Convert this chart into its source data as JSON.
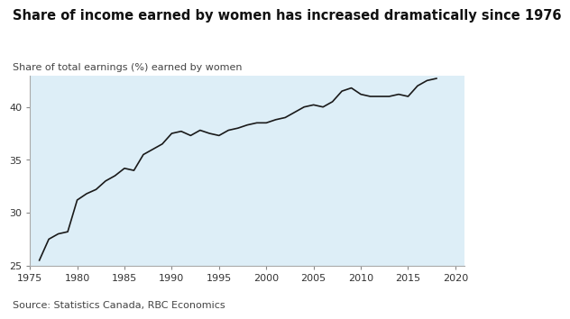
{
  "title": "Share of income earned by women has increased dramatically since 1976",
  "ylabel": "Share of total earnings (%) earned by women",
  "source": "Source: Statistics Canada, RBC Economics",
  "background_color": "#ddeef7",
  "outer_background": "#ffffff",
  "line_color": "#1a1a1a",
  "title_fontsize": 10.5,
  "label_fontsize": 8.0,
  "source_fontsize": 8.0,
  "years": [
    1976,
    1977,
    1978,
    1979,
    1980,
    1981,
    1982,
    1983,
    1984,
    1985,
    1986,
    1987,
    1988,
    1989,
    1990,
    1991,
    1992,
    1993,
    1994,
    1995,
    1996,
    1997,
    1998,
    1999,
    2000,
    2001,
    2002,
    2003,
    2004,
    2005,
    2006,
    2007,
    2008,
    2009,
    2010,
    2011,
    2012,
    2013,
    2014,
    2015,
    2016,
    2017,
    2018
  ],
  "values": [
    25.5,
    27.5,
    28.0,
    28.2,
    31.2,
    31.8,
    32.2,
    33.0,
    33.5,
    34.2,
    34.0,
    35.5,
    36.0,
    36.5,
    37.5,
    37.7,
    37.3,
    37.8,
    37.5,
    37.3,
    37.8,
    38.0,
    38.3,
    38.5,
    38.5,
    38.8,
    39.0,
    39.5,
    40.0,
    40.2,
    40.0,
    40.5,
    41.5,
    41.8,
    41.2,
    41.0,
    41.0,
    41.0,
    41.2,
    41.0,
    42.0,
    42.5,
    42.7
  ],
  "xlim": [
    1975,
    2021
  ],
  "ylim": [
    25,
    43
  ],
  "yticks": [
    25,
    30,
    35,
    40
  ],
  "xticks": [
    1975,
    1980,
    1985,
    1990,
    1995,
    2000,
    2005,
    2010,
    2015,
    2020
  ]
}
